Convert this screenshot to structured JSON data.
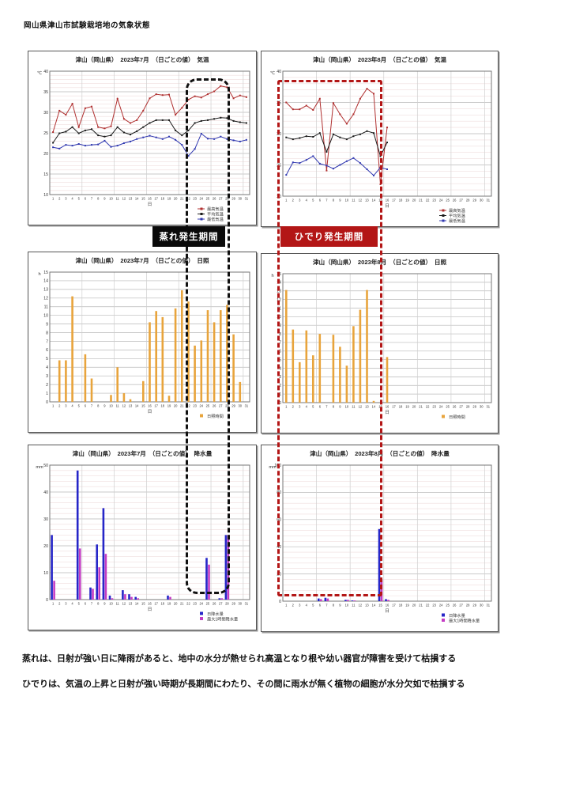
{
  "page": {
    "title": "岡山県津山市試験栽培地の気象状態"
  },
  "labels": {
    "mure": "蒸れ発生期間",
    "hideri": "ひでり発生期間"
  },
  "notes": {
    "line1": "蒸れは、日射が強い日に降雨があると、地中の水分が熱せられ高温となり根や幼い器官が障害を受けて枯損する",
    "line2": "ひでりは、気温の上昇と日射が強い時期が長期間にわたり、その間に雨水が無く植物の細胞が水分欠如で枯損する"
  },
  "colors": {
    "max_temp": "#b03030",
    "avg_temp": "#1a1a1a",
    "min_temp": "#3038b0",
    "sunshine": "#e8a43c",
    "rain_daily": "#2626c8",
    "rain_hourly": "#c43cc4",
    "mure_box": "#0a0a0a",
    "hideri_box": "#b31616"
  },
  "chart_data": [
    {
      "type": "line",
      "title": "津山（岡山県）　2023年7月　（日ごとの値）　気温",
      "xlabel": "日",
      "y_unit": "℃",
      "ylim": [
        10,
        40
      ],
      "ytick": 5,
      "yminor": 1,
      "x_count": 31,
      "series": [
        {
          "name": "最高気温",
          "color": "#b03030",
          "values": [
            25.2,
            30.4,
            29.4,
            32.1,
            26.4,
            31.0,
            31.4,
            26.4,
            26.1,
            26.6,
            33.3,
            28.4,
            27.4,
            28.1,
            30.4,
            33.4,
            34.4,
            34.2,
            34.3,
            29.4,
            31.1,
            33.1,
            33.9,
            33.6,
            34.4,
            35.1,
            36.4,
            36.1,
            33.4,
            34.1,
            33.7
          ]
        },
        {
          "name": "平均気温",
          "color": "#1a1a1a",
          "values": [
            22.6,
            24.9,
            25.3,
            26.4,
            24.9,
            25.6,
            25.9,
            24.4,
            24.1,
            24.4,
            26.4,
            25.1,
            24.6,
            25.4,
            26.4,
            27.4,
            28.1,
            28.1,
            28.1,
            25.6,
            24.4,
            25.6,
            27.4,
            27.9,
            28.1,
            28.4,
            28.7,
            28.6,
            27.9,
            27.6,
            27.4
          ]
        },
        {
          "name": "最低気温",
          "color": "#3038b0",
          "values": [
            21.5,
            21.2,
            22.1,
            21.9,
            22.3,
            21.9,
            22.1,
            22.2,
            23.1,
            21.6,
            21.9,
            22.5,
            22.9,
            23.5,
            23.9,
            24.3,
            23.9,
            23.5,
            24.1,
            23.3,
            22.1,
            19.4,
            21.1,
            24.8,
            23.6,
            23.5,
            24.1,
            23.5,
            23.2,
            22.9,
            23.3
          ]
        }
      ]
    },
    {
      "type": "line",
      "title": "津山（岡山県）　2023年8月　（日ごとの値）　気温",
      "xlabel": "日",
      "y_unit": "℃",
      "ylim": [
        20,
        40
      ],
      "ytick": 5,
      "yminor": 1,
      "x_count": 31,
      "series": [
        {
          "name": "最高気温",
          "color": "#b03030",
          "values": [
            35.0,
            33.9,
            33.9,
            34.5,
            33.8,
            35.6,
            24.1,
            34.9,
            33.1,
            31.6,
            33.1,
            35.6,
            37.2,
            36.4,
            21.9,
            31.0,
            null,
            null,
            null,
            null,
            null,
            null,
            null,
            null,
            null,
            null,
            null,
            null,
            null,
            null,
            null
          ]
        },
        {
          "name": "平均気温",
          "color": "#1a1a1a",
          "values": [
            29.4,
            29.1,
            29.3,
            29.6,
            29.5,
            30.1,
            27.1,
            29.9,
            29.4,
            29.1,
            29.6,
            29.9,
            30.4,
            30.1,
            26.4,
            28.6,
            null,
            null,
            null,
            null,
            null,
            null,
            null,
            null,
            null,
            null,
            null,
            null,
            null,
            null,
            null
          ]
        },
        {
          "name": "最低気温",
          "color": "#3038b0",
          "values": [
            23.4,
            25.4,
            25.3,
            25.8,
            26.4,
            25.2,
            24.9,
            24.4,
            25.0,
            25.6,
            26.1,
            25.3,
            24.3,
            23.3,
            24.6,
            24.3,
            null,
            null,
            null,
            null,
            null,
            null,
            null,
            null,
            null,
            null,
            null,
            null,
            null,
            null,
            null
          ]
        }
      ]
    },
    {
      "type": "bar",
      "title": "津山（岡山県）　2023年7月　（日ごとの値）　日照",
      "xlabel": "日",
      "y_unit": "h",
      "ylim": [
        0,
        15
      ],
      "ytick": 1,
      "yminor": 0,
      "x_count": 31,
      "series": [
        {
          "name": "日照時間",
          "color": "#e8a43c",
          "values": [
            0,
            4.8,
            4.8,
            12.2,
            0,
            5.5,
            2.7,
            0,
            0,
            0.8,
            4.0,
            1.0,
            0.3,
            0,
            2.4,
            9.2,
            10.5,
            9.8,
            0.7,
            10.8,
            12.9,
            11.6,
            6.5,
            7.1,
            10.6,
            9.2,
            10.6,
            11.2,
            7.8,
            2.3,
            0
          ]
        }
      ]
    },
    {
      "type": "bar",
      "title": "津山（岡山県）　2023年8月　（日ごとの値）　日照",
      "xlabel": "日",
      "y_unit": "h",
      "ylim": [
        0,
        15
      ],
      "ytick": 1,
      "yminor": 0,
      "x_count": 31,
      "series": [
        {
          "name": "日照時間",
          "color": "#e8a43c",
          "values": [
            13.1,
            8.5,
            4.7,
            8.4,
            5.5,
            8.0,
            0,
            7.9,
            6.5,
            4.3,
            8.9,
            10.8,
            13.1,
            0.2,
            0,
            5.3,
            0,
            0,
            0,
            0,
            0,
            0,
            0,
            0,
            0,
            0,
            0,
            0,
            0,
            0,
            0
          ]
        }
      ]
    },
    {
      "type": "bar",
      "title": "津山（岡山県）　2023年7月　（日ごとの値）　降水量",
      "xlabel": "日",
      "y_unit": "mm",
      "ylim": [
        0,
        50
      ],
      "ytick": 10,
      "yminor": 2,
      "x_count": 31,
      "series": [
        {
          "name": "日降水量",
          "color": "#2626c8",
          "values": [
            24,
            0,
            0,
            0,
            48,
            0,
            4.5,
            20.5,
            34,
            1.5,
            0,
            3.5,
            2,
            1,
            0,
            0,
            0,
            0,
            1.5,
            0,
            0,
            0,
            0,
            0,
            15.5,
            0,
            0.5,
            24,
            0,
            0,
            0
          ]
        },
        {
          "name": "最大1時間降水量",
          "color": "#c43cc4",
          "values": [
            7,
            0,
            0,
            0,
            19,
            0,
            4,
            12,
            17,
            0.5,
            0,
            2,
            1,
            0.5,
            0,
            0,
            0,
            0,
            1,
            0,
            0,
            0,
            0,
            0,
            13,
            0,
            0.5,
            24,
            0,
            0,
            0
          ]
        }
      ]
    },
    {
      "type": "bar",
      "title": "津山（岡山県）　2023年8月　（日ごとの値）　降水量",
      "xlabel": "日",
      "y_unit": "mm",
      "ylim": [
        0,
        100
      ],
      "ytick": 20,
      "yminor": 4,
      "x_count": 31,
      "series": [
        {
          "name": "日降水量",
          "color": "#2626c8",
          "values": [
            0,
            0,
            0,
            0,
            0,
            2,
            2.5,
            0,
            0,
            1,
            0.5,
            0,
            0,
            0,
            53,
            1.5,
            0,
            0,
            0,
            0,
            0,
            0,
            0,
            0,
            0,
            0,
            0,
            0,
            0,
            0,
            0
          ]
        },
        {
          "name": "最大1時間降水量",
          "color": "#c43cc4",
          "values": [
            0,
            0,
            0,
            0,
            0,
            1.5,
            2,
            0,
            0,
            1,
            0.5,
            0,
            0,
            0,
            16,
            1,
            0,
            0,
            0,
            0,
            0,
            0,
            0,
            0,
            0,
            0,
            0,
            0,
            0,
            0,
            0
          ]
        }
      ]
    }
  ]
}
